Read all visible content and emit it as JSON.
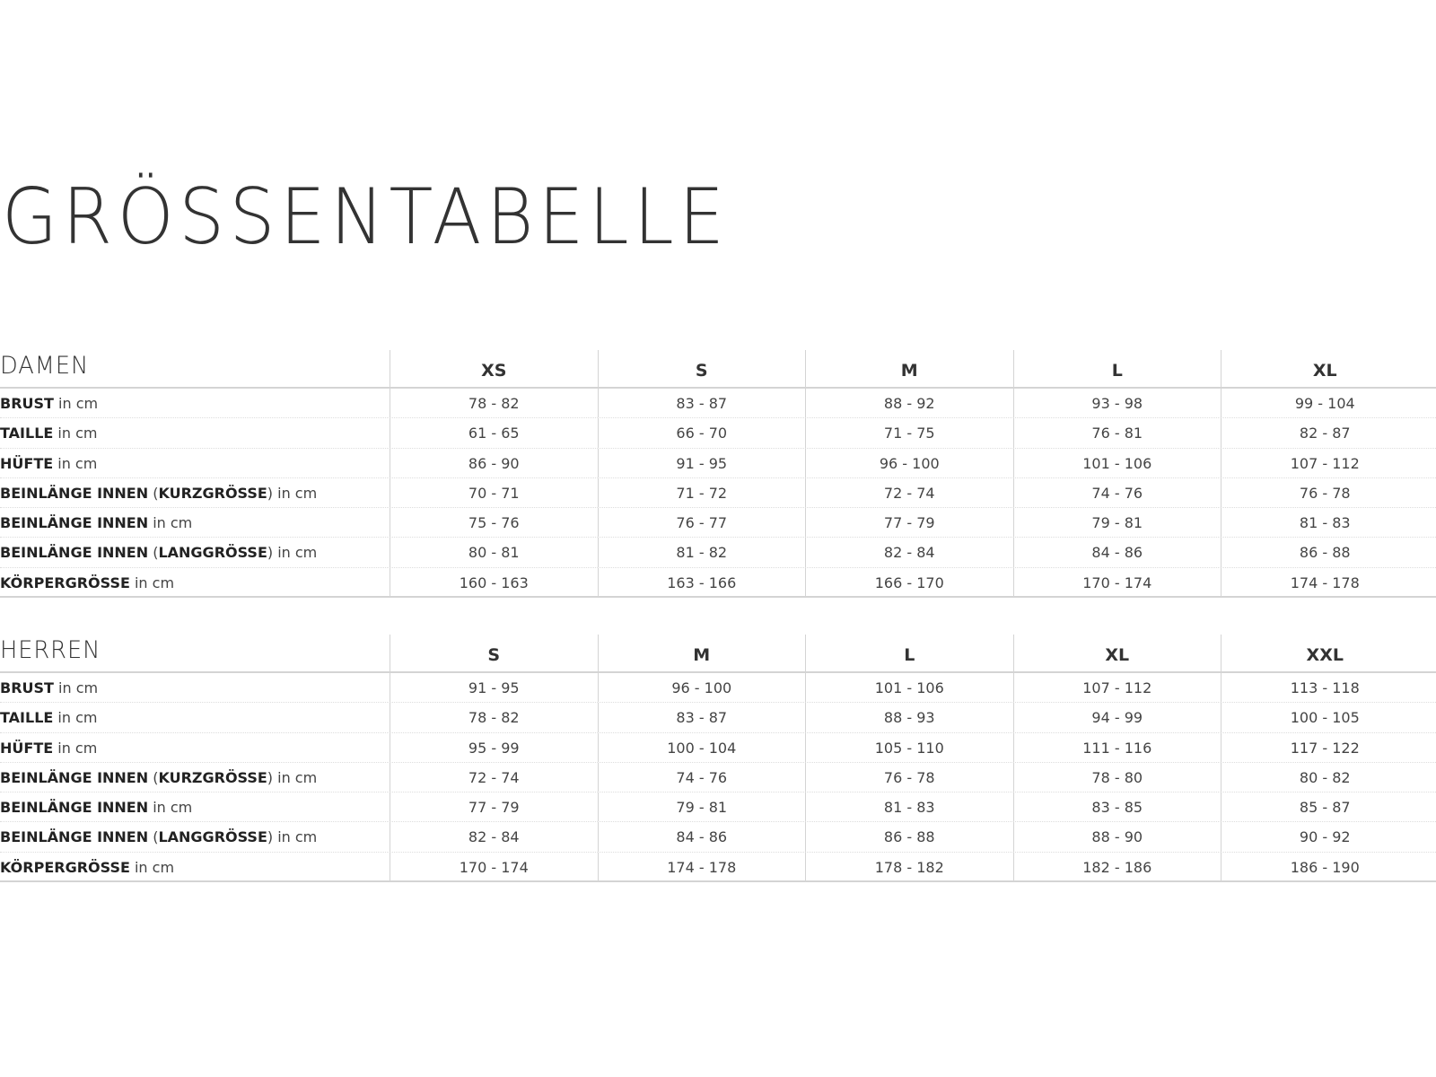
{
  "title": "GRÖSSENTABELLE",
  "unit_suffix": " in cm",
  "tables": [
    {
      "heading": "DAMEN",
      "sizes": [
        "XS",
        "S",
        "M",
        "L",
        "XL"
      ],
      "rows": [
        {
          "label": "BRUST",
          "qualifier": "",
          "values": [
            "78 - 82",
            "83 - 87",
            "88 - 92",
            "93 - 98",
            "99 - 104"
          ]
        },
        {
          "label": "TAILLE",
          "qualifier": "",
          "values": [
            "61 - 65",
            "66 - 70",
            "71 - 75",
            "76 - 81",
            "82 - 87"
          ]
        },
        {
          "label": "HÜFTE",
          "qualifier": "",
          "values": [
            "86 - 90",
            "91 - 95",
            "96 - 100",
            "101 - 106",
            "107 - 112"
          ]
        },
        {
          "label": "BEINLÄNGE INNEN",
          "qualifier": "KURZGRÖSSE",
          "values": [
            "70 - 71",
            "71 - 72",
            "72 - 74",
            "74 - 76",
            "76 - 78"
          ]
        },
        {
          "label": "BEINLÄNGE INNEN",
          "qualifier": "",
          "values": [
            "75 - 76",
            "76 - 77",
            "77 - 79",
            "79 - 81",
            "81 - 83"
          ]
        },
        {
          "label": "BEINLÄNGE INNEN",
          "qualifier": "LANGGRÖSSE",
          "values": [
            "80 - 81",
            "81 - 82",
            "82 - 84",
            "84 - 86",
            "86 - 88"
          ]
        },
        {
          "label": "KÖRPERGRÖSSE",
          "qualifier": "",
          "values": [
            "160 - 163",
            "163 - 166",
            "166 - 170",
            "170 - 174",
            "174 - 178"
          ]
        }
      ]
    },
    {
      "heading": "HERREN",
      "sizes": [
        "S",
        "M",
        "L",
        "XL",
        "XXL"
      ],
      "rows": [
        {
          "label": "BRUST",
          "qualifier": "",
          "values": [
            "91 - 95",
            "96 - 100",
            "101 - 106",
            "107 - 112",
            "113 - 118"
          ]
        },
        {
          "label": "TAILLE",
          "qualifier": "",
          "values": [
            "78 - 82",
            "83 - 87",
            "88 - 93",
            "94 - 99",
            "100 - 105"
          ]
        },
        {
          "label": "HÜFTE",
          "qualifier": "",
          "values": [
            "95 - 99",
            "100 - 104",
            "105 - 110",
            "111 - 116",
            "117 - 122"
          ]
        },
        {
          "label": "BEINLÄNGE INNEN",
          "qualifier": "KURZGRÖSSE",
          "values": [
            "72 - 74",
            "74 - 76",
            "76 - 78",
            "78 - 80",
            "80 - 82"
          ]
        },
        {
          "label": "BEINLÄNGE INNEN",
          "qualifier": "",
          "values": [
            "77 - 79",
            "79 - 81",
            "81 - 83",
            "83 - 85",
            "85 - 87"
          ]
        },
        {
          "label": "BEINLÄNGE INNEN",
          "qualifier": "LANGGRÖSSE",
          "values": [
            "82 - 84",
            "84 - 86",
            "86 - 88",
            "88 - 90",
            "90 - 92"
          ]
        },
        {
          "label": "KÖRPERGRÖSSE",
          "qualifier": "",
          "values": [
            "170 - 174",
            "174 - 178",
            "178 - 182",
            "182 - 186",
            "186 - 190"
          ]
        }
      ]
    }
  ]
}
